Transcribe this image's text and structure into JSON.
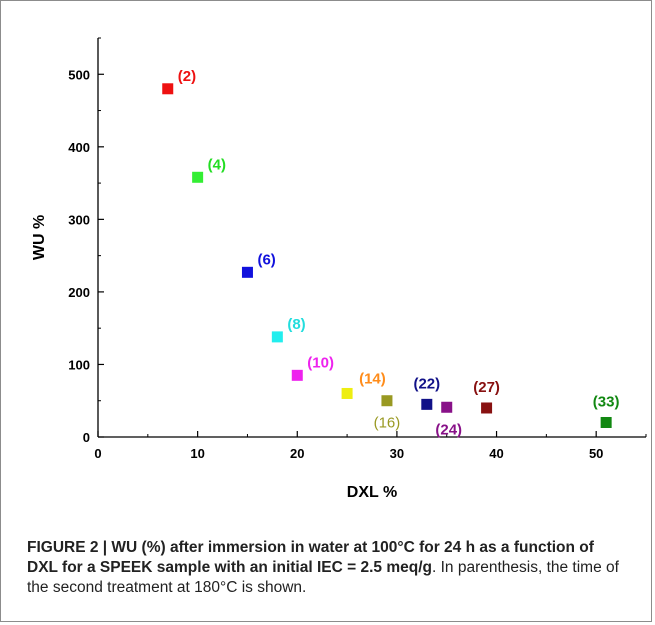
{
  "chart_data": {
    "type": "scatter",
    "xlabel": "DXL %",
    "ylabel": "WU %",
    "xlim": [
      0,
      55
    ],
    "ylim": [
      0,
      550
    ],
    "xticks": [
      0,
      10,
      20,
      30,
      40,
      50
    ],
    "yticks": [
      0,
      100,
      200,
      300,
      400,
      500
    ],
    "grid": false,
    "points": [
      {
        "x": 7,
        "y": 480,
        "label": "(2)",
        "color": "#ee1111",
        "label_pos": "right"
      },
      {
        "x": 10,
        "y": 358,
        "label": "(4)",
        "color": "#33ee33",
        "label_pos": "right"
      },
      {
        "x": 15,
        "y": 227,
        "label": "(6)",
        "color": "#1111dd",
        "label_pos": "right"
      },
      {
        "x": 18,
        "y": 138,
        "label": "(8)",
        "color": "#22eeee",
        "label_pos": "right"
      },
      {
        "x": 20,
        "y": 85,
        "label": "(10)",
        "color": "#ee22ee",
        "label_pos": "right"
      },
      {
        "x": 25,
        "y": 60,
        "label": "(14)",
        "color": "#eeee11",
        "label_pos": "label-orange"
      },
      {
        "x": 29,
        "y": 50,
        "label": "(16)",
        "color": "#999922",
        "label_pos": "below-left"
      },
      {
        "x": 33,
        "y": 45,
        "label": "(22)",
        "color": "#111188",
        "label_pos": "above"
      },
      {
        "x": 35,
        "y": 41,
        "label": "(24)",
        "color": "#881188",
        "label_pos": "below"
      },
      {
        "x": 39,
        "y": 40,
        "label": "(27)",
        "color": "#881111",
        "label_pos": "above"
      },
      {
        "x": 51,
        "y": 20,
        "label": "(33)",
        "color": "#118811",
        "label_pos": "above"
      }
    ]
  },
  "caption": {
    "bold_text": "FIGURE 2 | WU (%) after immersion in water at 100°C for 24 h as a function of DXL for a SPEEK sample with an initial IEC = 2.5 meq/g",
    "normal_text": ". In parenthesis, the time of the second treatment at 180°C is shown."
  }
}
